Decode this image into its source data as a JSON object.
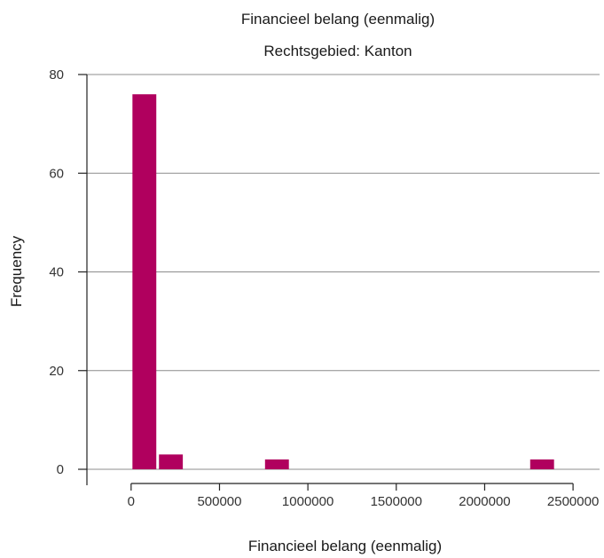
{
  "chart_data": {
    "type": "bar",
    "title": "Financieel belang (eenmalig)",
    "subtitle": "Rechtsgebied: Kanton",
    "xlabel": "Financieel belang (eenmalig)",
    "ylabel": "Frequency",
    "xlim": [
      -250000,
      2650000
    ],
    "ylim": [
      0,
      80
    ],
    "x_ticks": [
      0,
      500000,
      1000000,
      1500000,
      2000000,
      2500000
    ],
    "x_tick_labels": [
      "0",
      "500000",
      "1000000",
      "1500000",
      "2000000",
      "2500000"
    ],
    "y_ticks": [
      0,
      20,
      40,
      60,
      80
    ],
    "y_tick_labels": [
      "0",
      "20",
      "40",
      "60",
      "80"
    ],
    "grid": "horizontal",
    "bar_color": "#b0005e",
    "bins": [
      {
        "x0": 0,
        "x1": 150000,
        "value": 76
      },
      {
        "x0": 150000,
        "x1": 300000,
        "value": 3
      },
      {
        "x0": 300000,
        "x1": 450000,
        "value": 0
      },
      {
        "x0": 450000,
        "x1": 600000,
        "value": 0
      },
      {
        "x0": 600000,
        "x1": 750000,
        "value": 0
      },
      {
        "x0": 750000,
        "x1": 900000,
        "value": 2
      },
      {
        "x0": 900000,
        "x1": 2250000,
        "value": 0
      },
      {
        "x0": 2250000,
        "x1": 2400000,
        "value": 2
      }
    ]
  }
}
